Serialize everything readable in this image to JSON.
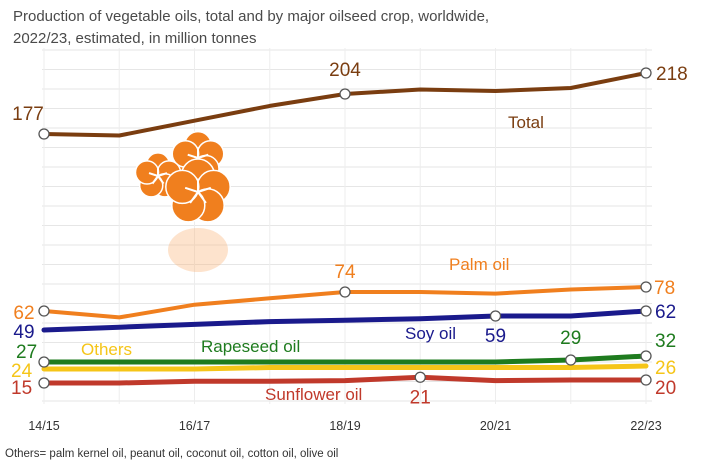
{
  "chart_data": {
    "type": "line",
    "title_line1": "Production of vegetable oils, total and by major oilseed crop, worldwide,",
    "title_line2": "2022/23, estimated, in million tonnes",
    "footnote": "Others= palm kernel oil, peanut oil, coconut oil, cotton oil, olive oil",
    "x": [
      "14/15",
      "15/16",
      "16/17",
      "17/18",
      "18/19",
      "19/20",
      "20/21",
      "21/22",
      "22/23"
    ],
    "xticks": [
      "14/15",
      "16/17",
      "18/19",
      "20/21",
      "22/23"
    ],
    "series": [
      {
        "name": "Total",
        "key": "total",
        "color": "#7a3d10",
        "values": [
          177,
          176,
          186,
          196,
          204,
          207,
          206,
          208,
          218
        ],
        "labels": [
          {
            "i": 0,
            "text": "177"
          },
          {
            "i": 4,
            "text": "204"
          },
          {
            "i": 8,
            "text": "218"
          }
        ]
      },
      {
        "name": "Palm oil",
        "key": "palm",
        "color": "#f07f1e",
        "values": [
          62,
          58,
          66,
          70,
          74,
          74,
          73,
          76,
          78
        ],
        "labels": [
          {
            "i": 0,
            "text": "62"
          },
          {
            "i": 4,
            "text": "74"
          },
          {
            "i": 8,
            "text": "78"
          }
        ]
      },
      {
        "name": "Soy oil",
        "key": "soy",
        "color": "#1a1a8c",
        "values": [
          49,
          51,
          53,
          55,
          56,
          57,
          59,
          59,
          62
        ],
        "labels": [
          {
            "i": 0,
            "text": "49"
          },
          {
            "i": 6,
            "text": "59"
          },
          {
            "i": 8,
            "text": "62"
          }
        ]
      },
      {
        "name": "Rapeseed oil",
        "key": "rapeseed",
        "color": "#1e7b1e",
        "values": [
          27,
          27,
          27,
          27,
          28,
          28,
          28,
          29,
          32
        ],
        "labels": [
          {
            "i": 0,
            "text": "27"
          },
          {
            "i": 7,
            "text": "29"
          },
          {
            "i": 8,
            "text": "32"
          }
        ]
      },
      {
        "name": "Others",
        "key": "others",
        "color": "#f5c518",
        "values": [
          24,
          24,
          24,
          25,
          25,
          25,
          25,
          25,
          26
        ],
        "labels": [
          {
            "i": 0,
            "text": "24"
          },
          {
            "i": 8,
            "text": "26"
          }
        ]
      },
      {
        "name": "Sunflower oil",
        "key": "sunflower",
        "color": "#c0392b",
        "values": [
          15,
          15,
          18,
          18,
          19,
          21,
          19,
          20,
          20
        ],
        "labels": [
          {
            "i": 0,
            "text": "15"
          },
          {
            "i": 5,
            "text": "21"
          },
          {
            "i": 8,
            "text": "20"
          }
        ]
      }
    ],
    "markers": [
      {
        "key": "total",
        "indices": [
          0,
          4,
          8
        ]
      },
      {
        "key": "palm",
        "indices": [
          0,
          4,
          8
        ]
      },
      {
        "key": "soy",
        "indices": [
          6,
          8
        ]
      },
      {
        "key": "rapeseed",
        "indices": [
          0,
          7,
          8
        ]
      },
      {
        "key": "sunflower",
        "indices": [
          0,
          5,
          8
        ]
      }
    ],
    "grid": true,
    "ylabel": "",
    "xlabel": ""
  }
}
